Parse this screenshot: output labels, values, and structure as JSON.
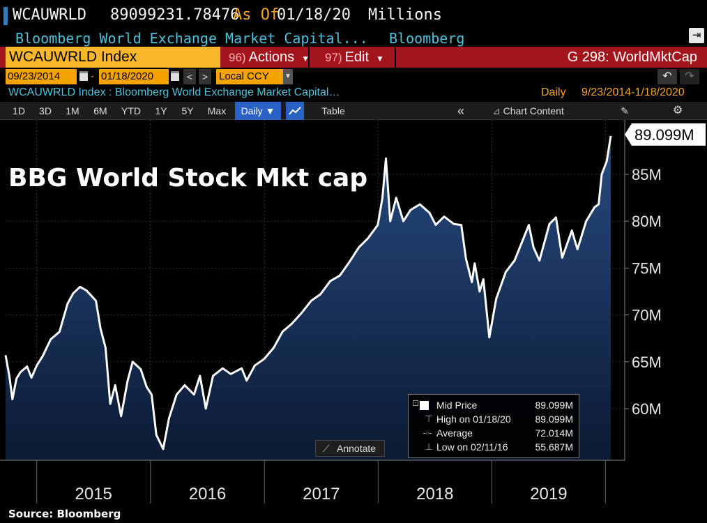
{
  "header": {
    "ticker": "WCAUWRLD",
    "last_value": "89099231.78476",
    "as_of_label": "As Of",
    "as_of_date": "01/18/20",
    "units": "Millions",
    "security_name": "Bloomberg World Exchange Market Capital...",
    "source": "Bloomberg"
  },
  "command_bar": {
    "index_label": "WCAUWRLD Index",
    "actions_num": "96)",
    "actions_label": "Actions",
    "edit_num": "97)",
    "edit_label": "Edit",
    "chart_name": "G 298: WorldMktCap"
  },
  "date_bar": {
    "start_date": "09/23/2014",
    "end_date": "01/18/2020",
    "dash": "-",
    "currency": "Local CCY",
    "prev_glyph": "<",
    "next_glyph": ">",
    "undo_glyph": "↶",
    "redo_glyph": "↷"
  },
  "subtitle": {
    "text": "WCAUWRLD Index : Bloomberg World Exchange Market Capital…",
    "frequency": "Daily",
    "range": "9/23/2014-1/18/2020"
  },
  "toolbar": {
    "periods": [
      "1D",
      "3D",
      "1M",
      "6M",
      "YTD",
      "1Y",
      "5Y",
      "Max"
    ],
    "frequency_button": "Daily ▼",
    "table_label": "Table",
    "collapse_glyph": "«",
    "chart_content_label": "Chart Content",
    "icons": [
      "line-chart-icon",
      "chart-content-icon",
      "edit-icon",
      "gear-icon"
    ]
  },
  "legend": {
    "rows": [
      {
        "label": "Mid Price",
        "value": "89.099M"
      },
      {
        "label": "High on 01/18/20",
        "value": "89.099M"
      },
      {
        "label": "Average",
        "value": "72.014M"
      },
      {
        "label": "Low on 02/11/16",
        "value": "55.687M"
      }
    ]
  },
  "annotate_label": "Annotate",
  "source_note": "Source:  Bloomberg",
  "colors": {
    "background": "#000000",
    "line": "#ffffff",
    "area_top": "#274a80",
    "area_bottom": "#0b1a33",
    "accent_orange": "#f5a300",
    "accent_red": "#a3141c",
    "accent_cyan": "#4fc3dc"
  },
  "chart_data": {
    "type": "area",
    "title": "BBG World Stock Mkt cap",
    "ylabel": "",
    "xlabel": "",
    "ylim": [
      55,
      90
    ],
    "y_ticks": [
      60,
      65,
      70,
      75,
      80,
      85
    ],
    "y_tick_labels": [
      "60M",
      "65M",
      "70M",
      "75M",
      "80M",
      "85M"
    ],
    "x_tick_labels": [
      "2015",
      "2016",
      "2017",
      "2018",
      "2019"
    ],
    "last_value_label": "89.099M",
    "grid": true,
    "series": [
      {
        "values": [
          [
            "2014-09-23",
            65.7
          ],
          [
            "2014-10-05",
            63.5
          ],
          [
            "2014-10-15",
            61.0
          ],
          [
            "2014-10-28",
            63.2
          ],
          [
            "2014-11-10",
            63.9
          ],
          [
            "2014-12-01",
            64.5
          ],
          [
            "2014-12-15",
            63.3
          ],
          [
            "2015-01-01",
            64.6
          ],
          [
            "2015-01-20",
            65.6
          ],
          [
            "2015-02-15",
            67.4
          ],
          [
            "2015-03-15",
            68.2
          ],
          [
            "2015-04-10",
            71.2
          ],
          [
            "2015-04-28",
            72.3
          ],
          [
            "2015-05-20",
            73.0
          ],
          [
            "2015-06-10",
            72.6
          ],
          [
            "2015-07-10",
            71.5
          ],
          [
            "2015-07-25",
            68.5
          ],
          [
            "2015-08-10",
            66.5
          ],
          [
            "2015-08-25",
            60.5
          ],
          [
            "2015-09-10",
            62.5
          ],
          [
            "2015-09-29",
            59.2
          ],
          [
            "2015-10-20",
            63.0
          ],
          [
            "2015-11-05",
            65.0
          ],
          [
            "2015-12-01",
            64.2
          ],
          [
            "2015-12-20",
            62.3
          ],
          [
            "2016-01-05",
            61.5
          ],
          [
            "2016-01-20",
            57.2
          ],
          [
            "2016-02-11",
            55.7
          ],
          [
            "2016-03-01",
            59.0
          ],
          [
            "2016-03-25",
            61.5
          ],
          [
            "2016-04-20",
            62.5
          ],
          [
            "2016-05-20",
            61.5
          ],
          [
            "2016-06-08",
            63.5
          ],
          [
            "2016-06-27",
            60.0
          ],
          [
            "2016-07-20",
            63.5
          ],
          [
            "2016-08-20",
            64.3
          ],
          [
            "2016-09-15",
            63.7
          ],
          [
            "2016-10-20",
            64.3
          ],
          [
            "2016-11-05",
            63.0
          ],
          [
            "2016-12-01",
            64.6
          ],
          [
            "2016-12-31",
            65.3
          ],
          [
            "2017-01-31",
            66.5
          ],
          [
            "2017-02-28",
            68.2
          ],
          [
            "2017-03-31",
            69.1
          ],
          [
            "2017-04-30",
            70.2
          ],
          [
            "2017-05-31",
            71.5
          ],
          [
            "2017-06-30",
            72.2
          ],
          [
            "2017-07-31",
            73.6
          ],
          [
            "2017-08-31",
            74.2
          ],
          [
            "2017-09-30",
            75.6
          ],
          [
            "2017-10-31",
            77.2
          ],
          [
            "2017-11-30",
            78.2
          ],
          [
            "2017-12-31",
            79.6
          ],
          [
            "2018-01-15",
            82.5
          ],
          [
            "2018-01-26",
            86.7
          ],
          [
            "2018-02-09",
            80.0
          ],
          [
            "2018-02-28",
            82.5
          ],
          [
            "2018-03-23",
            80.0
          ],
          [
            "2018-04-15",
            81.2
          ],
          [
            "2018-05-15",
            81.8
          ],
          [
            "2018-06-15",
            80.9
          ],
          [
            "2018-07-05",
            79.6
          ],
          [
            "2018-08-01",
            80.5
          ],
          [
            "2018-09-01",
            79.7
          ],
          [
            "2018-09-25",
            79.6
          ],
          [
            "2018-10-10",
            76.0
          ],
          [
            "2018-10-29",
            73.5
          ],
          [
            "2018-11-07",
            75.5
          ],
          [
            "2018-11-23",
            72.5
          ],
          [
            "2018-12-05",
            73.8
          ],
          [
            "2018-12-24",
            67.6
          ],
          [
            "2019-01-15",
            71.7
          ],
          [
            "2019-02-15",
            74.6
          ],
          [
            "2019-03-15",
            75.8
          ],
          [
            "2019-04-30",
            79.6
          ],
          [
            "2019-05-15",
            77.2
          ],
          [
            "2019-06-03",
            75.8
          ],
          [
            "2019-07-05",
            79.7
          ],
          [
            "2019-07-26",
            80.4
          ],
          [
            "2019-08-15",
            76.1
          ],
          [
            "2019-09-15",
            79.0
          ],
          [
            "2019-10-03",
            77.0
          ],
          [
            "2019-10-31",
            80.0
          ],
          [
            "2019-11-27",
            81.5
          ],
          [
            "2019-12-10",
            81.8
          ],
          [
            "2019-12-20",
            85.0
          ],
          [
            "2020-01-05",
            86.4
          ],
          [
            "2020-01-18",
            89.1
          ]
        ]
      }
    ]
  }
}
